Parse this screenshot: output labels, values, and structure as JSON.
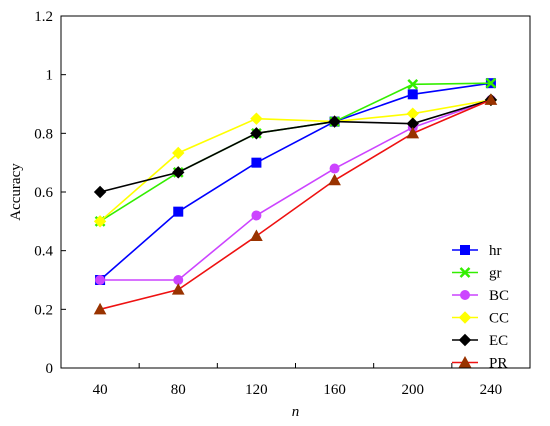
{
  "chart_data": {
    "type": "line",
    "title": "",
    "xlabel": "n",
    "ylabel": "Accuracy",
    "x": [
      40,
      80,
      120,
      160,
      200,
      240
    ],
    "x_tick_labels": [
      "40",
      "80",
      "120",
      "160",
      "200",
      "240"
    ],
    "ylim": [
      0,
      1.2
    ],
    "y_ticks": [
      0,
      0.2,
      0.4,
      0.6,
      0.8,
      1,
      1.2
    ],
    "y_tick_labels": [
      "0",
      "0.2",
      "0.4",
      "0.6",
      "0.8",
      "1",
      "1.2"
    ],
    "grid": false,
    "legend_position": "bottom-right",
    "series": [
      {
        "name": "hr",
        "color": "#0000ff",
        "marker": "square",
        "values": [
          0.3,
          0.533,
          0.7,
          0.84,
          0.933,
          0.971
        ]
      },
      {
        "name": "gr",
        "color": "#33ee00",
        "marker": "x",
        "values": [
          0.5,
          0.667,
          0.8,
          0.84,
          0.967,
          0.971
        ]
      },
      {
        "name": "BC",
        "color": "#cc44ff",
        "marker": "circle",
        "values": [
          0.3,
          0.3,
          0.52,
          0.68,
          0.82,
          0.914
        ]
      },
      {
        "name": "CC",
        "color": "#ffff00",
        "marker": "diamond",
        "values": [
          0.5,
          0.733,
          0.85,
          0.84,
          0.867,
          0.914
        ]
      },
      {
        "name": "EC",
        "color": "#000000",
        "marker": "diamond",
        "values": [
          0.6,
          0.667,
          0.8,
          0.84,
          0.833,
          0.914
        ]
      },
      {
        "name": "PR",
        "color": "#ee1111",
        "marker": "triangle",
        "marker_color": "#993300",
        "values": [
          0.2,
          0.267,
          0.45,
          0.64,
          0.8,
          0.914
        ]
      }
    ]
  }
}
